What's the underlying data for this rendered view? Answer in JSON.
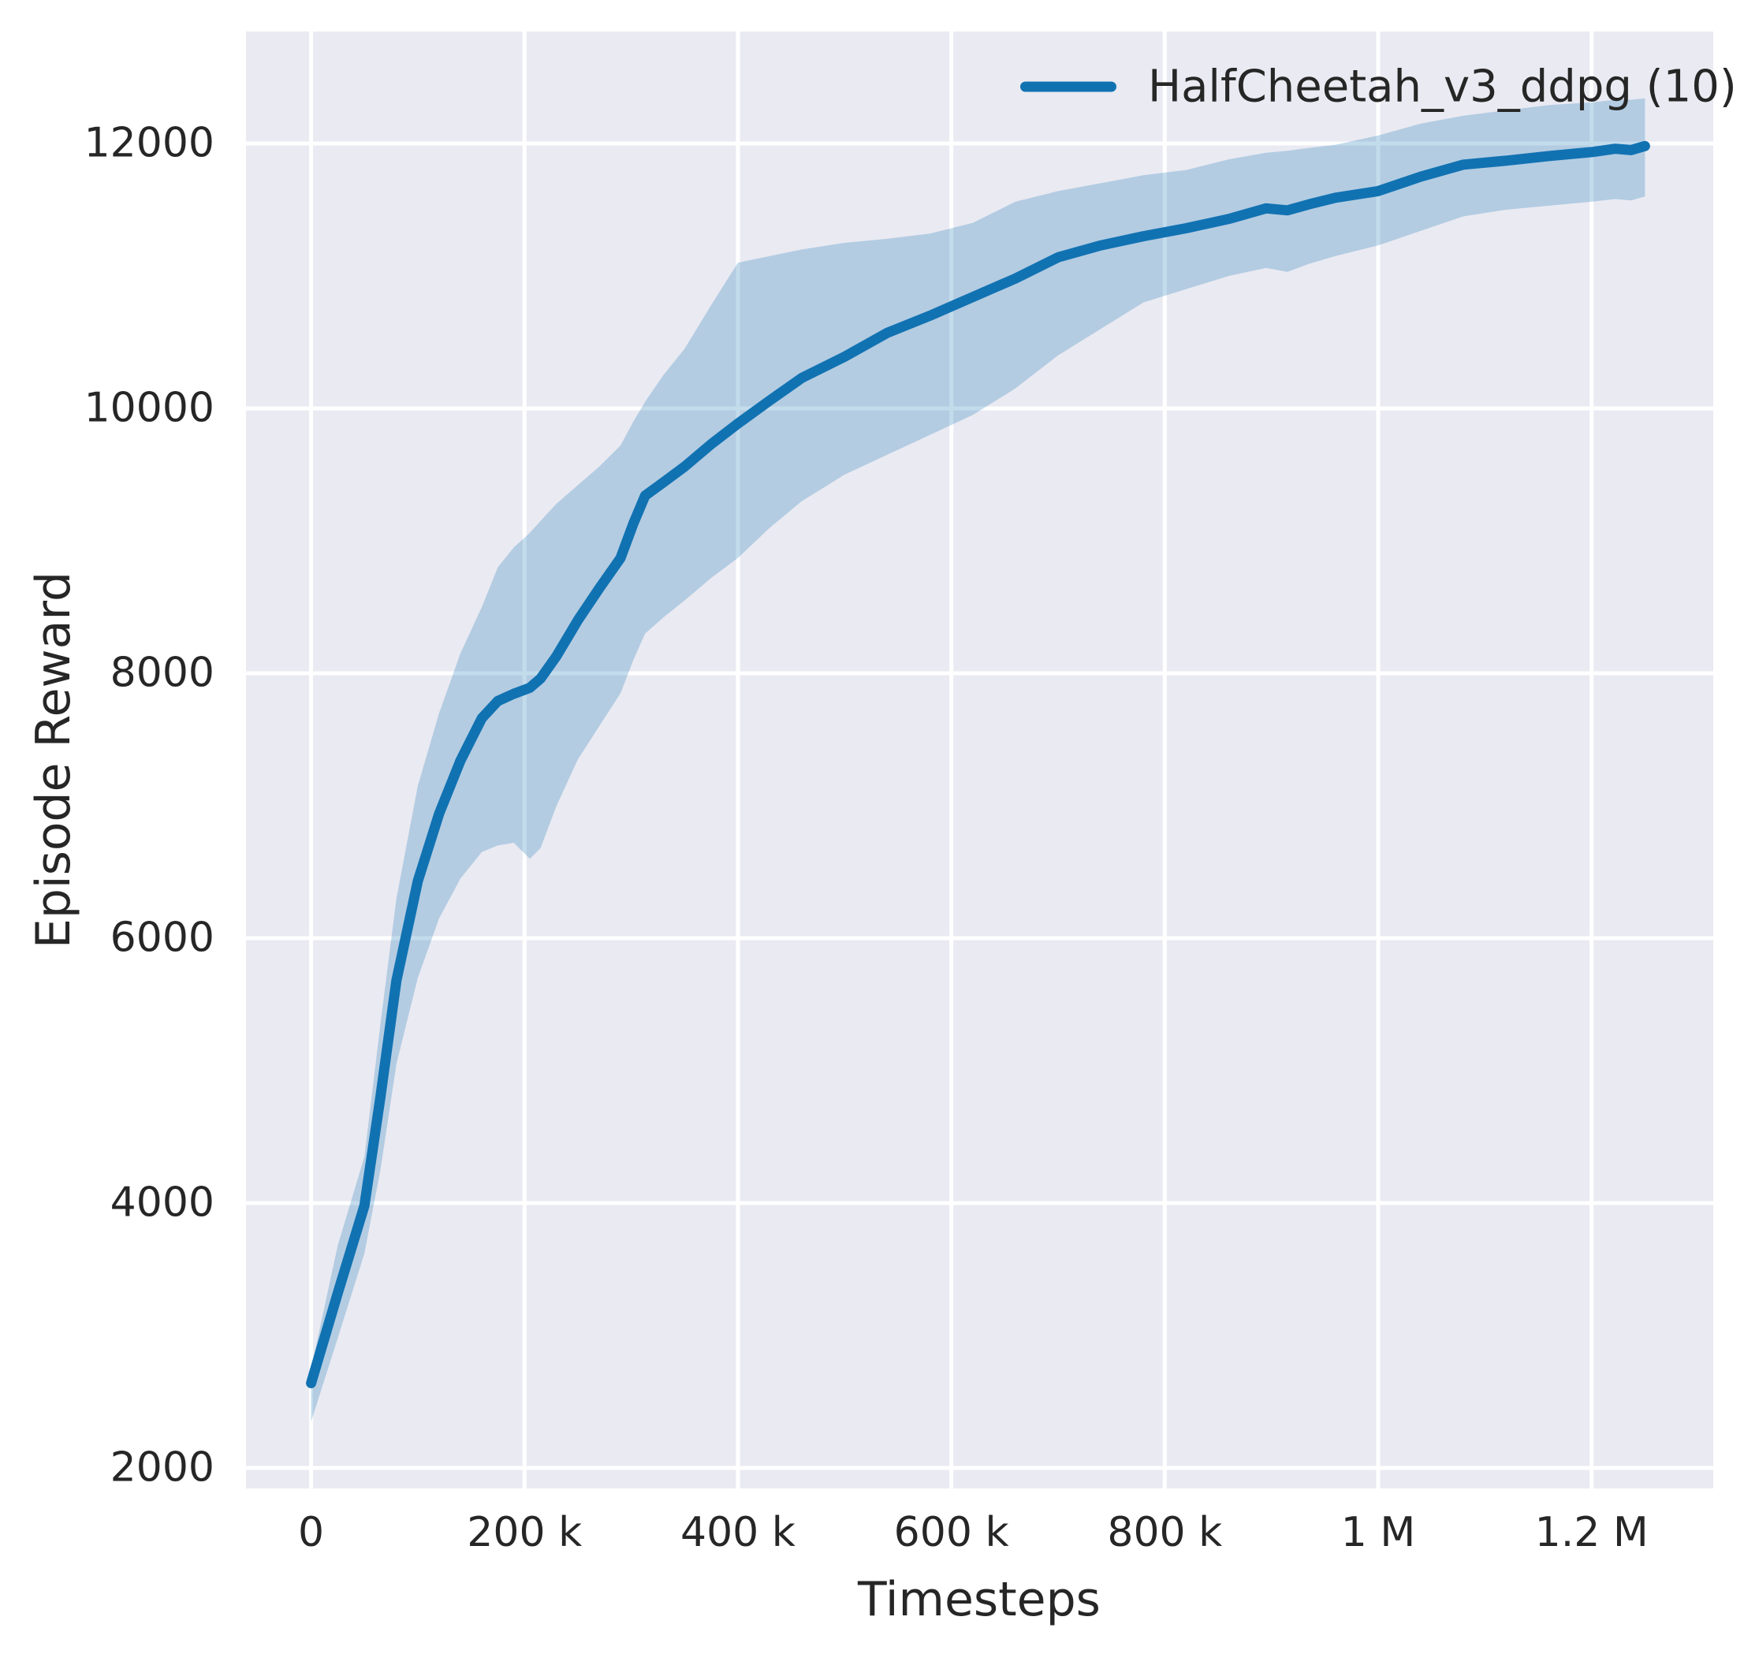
{
  "chart_data": {
    "type": "line",
    "title": "",
    "xlabel": "Timesteps",
    "ylabel": "Episode Reward",
    "grid": true,
    "legend_position": "upper right",
    "plot_background": "#eaeaf2",
    "grid_color": "#ffffff",
    "text_color": "#262626",
    "band_opacity": 0.25,
    "xlim": [
      -61000,
      1314000
    ],
    "ylim": [
      1845,
      12845
    ],
    "xticks": {
      "values": [
        0,
        200000,
        400000,
        600000,
        800000,
        1000000,
        1200000
      ],
      "labels": [
        "0",
        "200 k",
        "400 k",
        "600 k",
        "800 k",
        "1 M",
        "1.2 M"
      ]
    },
    "yticks": {
      "values": [
        2000,
        4000,
        6000,
        8000,
        10000,
        12000
      ],
      "labels": [
        "2000",
        "4000",
        "6000",
        "8000",
        "10000",
        "12000"
      ]
    },
    "legend": {
      "entries": [
        {
          "label": "HalfCheetah_v3_ddpg (10)",
          "color": "#1172b2",
          "marker": "line"
        }
      ]
    },
    "series": [
      {
        "name": "HalfCheetah_v3_ddpg (10)",
        "color": "#1172b2",
        "x": [
          0,
          25000,
          50000,
          65000,
          80000,
          100000,
          120000,
          140000,
          160000,
          175000,
          190000,
          205000,
          215000,
          230000,
          250000,
          270000,
          290000,
          302000,
          313000,
          330000,
          350000,
          375000,
          400000,
          430000,
          460000,
          500000,
          540000,
          580000,
          620000,
          660000,
          700000,
          740000,
          780000,
          820000,
          860000,
          895000,
          915000,
          935000,
          960000,
          1000000,
          1040000,
          1080000,
          1120000,
          1160000,
          1200000,
          1222000,
          1237000,
          1250000
        ],
        "y": [
          2640,
          3320,
          3980,
          4800,
          5680,
          6430,
          6940,
          7340,
          7660,
          7790,
          7845,
          7890,
          7960,
          8130,
          8400,
          8640,
          8870,
          9130,
          9340,
          9440,
          9560,
          9730,
          9885,
          10060,
          10230,
          10390,
          10570,
          10700,
          10840,
          10980,
          11140,
          11230,
          11300,
          11360,
          11430,
          11510,
          11495,
          11540,
          11590,
          11640,
          11750,
          11840,
          11870,
          11905,
          11935,
          11960,
          11950,
          11980
        ],
        "band_lower": [
          2350,
          2980,
          3620,
          4250,
          5050,
          5700,
          6150,
          6450,
          6650,
          6700,
          6720,
          6600,
          6680,
          7000,
          7350,
          7600,
          7850,
          8100,
          8300,
          8420,
          8550,
          8720,
          8870,
          9100,
          9300,
          9500,
          9650,
          9800,
          9950,
          10150,
          10400,
          10600,
          10800,
          10900,
          11000,
          11060,
          11030,
          11090,
          11150,
          11230,
          11340,
          11450,
          11500,
          11530,
          11560,
          11580,
          11570,
          11600
        ],
        "band_upper": [
          2750,
          3680,
          4350,
          5350,
          6300,
          7150,
          7700,
          8150,
          8500,
          8800,
          8950,
          9060,
          9150,
          9280,
          9420,
          9560,
          9720,
          9900,
          10050,
          10250,
          10450,
          10780,
          11100,
          11150,
          11200,
          11250,
          11280,
          11320,
          11400,
          11560,
          11640,
          11700,
          11760,
          11800,
          11880,
          11930,
          11945,
          11965,
          11990,
          12060,
          12150,
          12210,
          12250,
          12290,
          12310,
          12330,
          12330,
          12340
        ]
      }
    ]
  }
}
